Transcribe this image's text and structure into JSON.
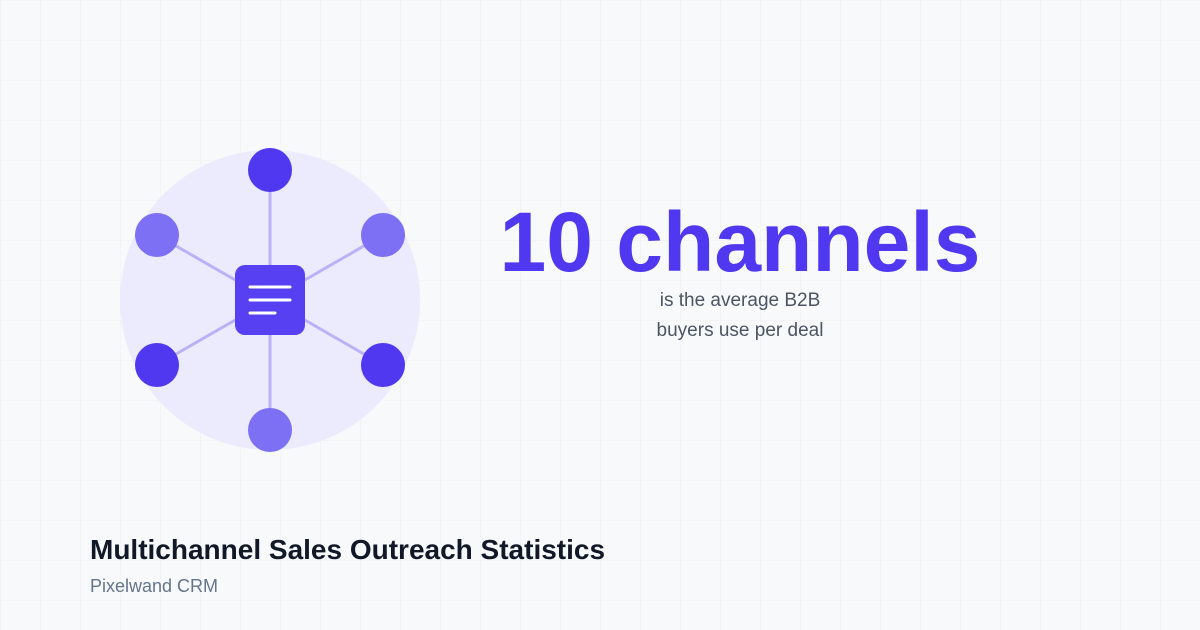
{
  "stat": {
    "headline": "10 channels",
    "description_lines": [
      "is the average B2B",
      "buyers use per deal"
    ]
  },
  "footer": {
    "title": "Multichannel Sales Outreach Statistics",
    "brand": "Pixelwand CRM"
  }
}
